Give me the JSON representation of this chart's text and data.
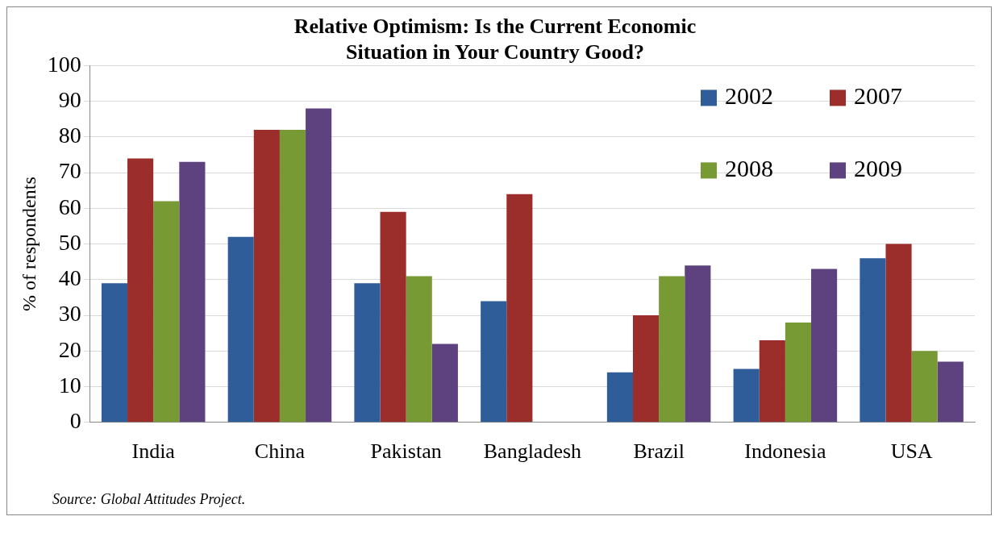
{
  "chart_data": {
    "type": "bar",
    "title": [
      "Relative Optimism: Is the Current Economic",
      "Situation in Your Country Good?"
    ],
    "ylabel": "% of respondents",
    "categories": [
      "India",
      "China",
      "Pakistan",
      "Bangladesh",
      "Brazil",
      "Indonesia",
      "USA"
    ],
    "series": [
      {
        "name": "2002",
        "color": "#2e5d9a",
        "values": [
          39,
          52,
          39,
          34,
          14,
          15,
          46
        ]
      },
      {
        "name": "2007",
        "color": "#9b2d2a",
        "values": [
          74,
          82,
          59,
          64,
          30,
          23,
          50
        ]
      },
      {
        "name": "2008",
        "color": "#779a35",
        "values": [
          62,
          82,
          41,
          null,
          41,
          28,
          20
        ]
      },
      {
        "name": "2009",
        "color": "#5e4280",
        "values": [
          73,
          88,
          22,
          null,
          44,
          43,
          17
        ]
      }
    ],
    "ylim": [
      0,
      100
    ],
    "yticks": [
      0,
      10,
      20,
      30,
      40,
      50,
      60,
      70,
      80,
      90,
      100
    ],
    "grid": "y",
    "legend": "top right",
    "annotations": [
      "Source: Global Attitudes Project."
    ]
  }
}
